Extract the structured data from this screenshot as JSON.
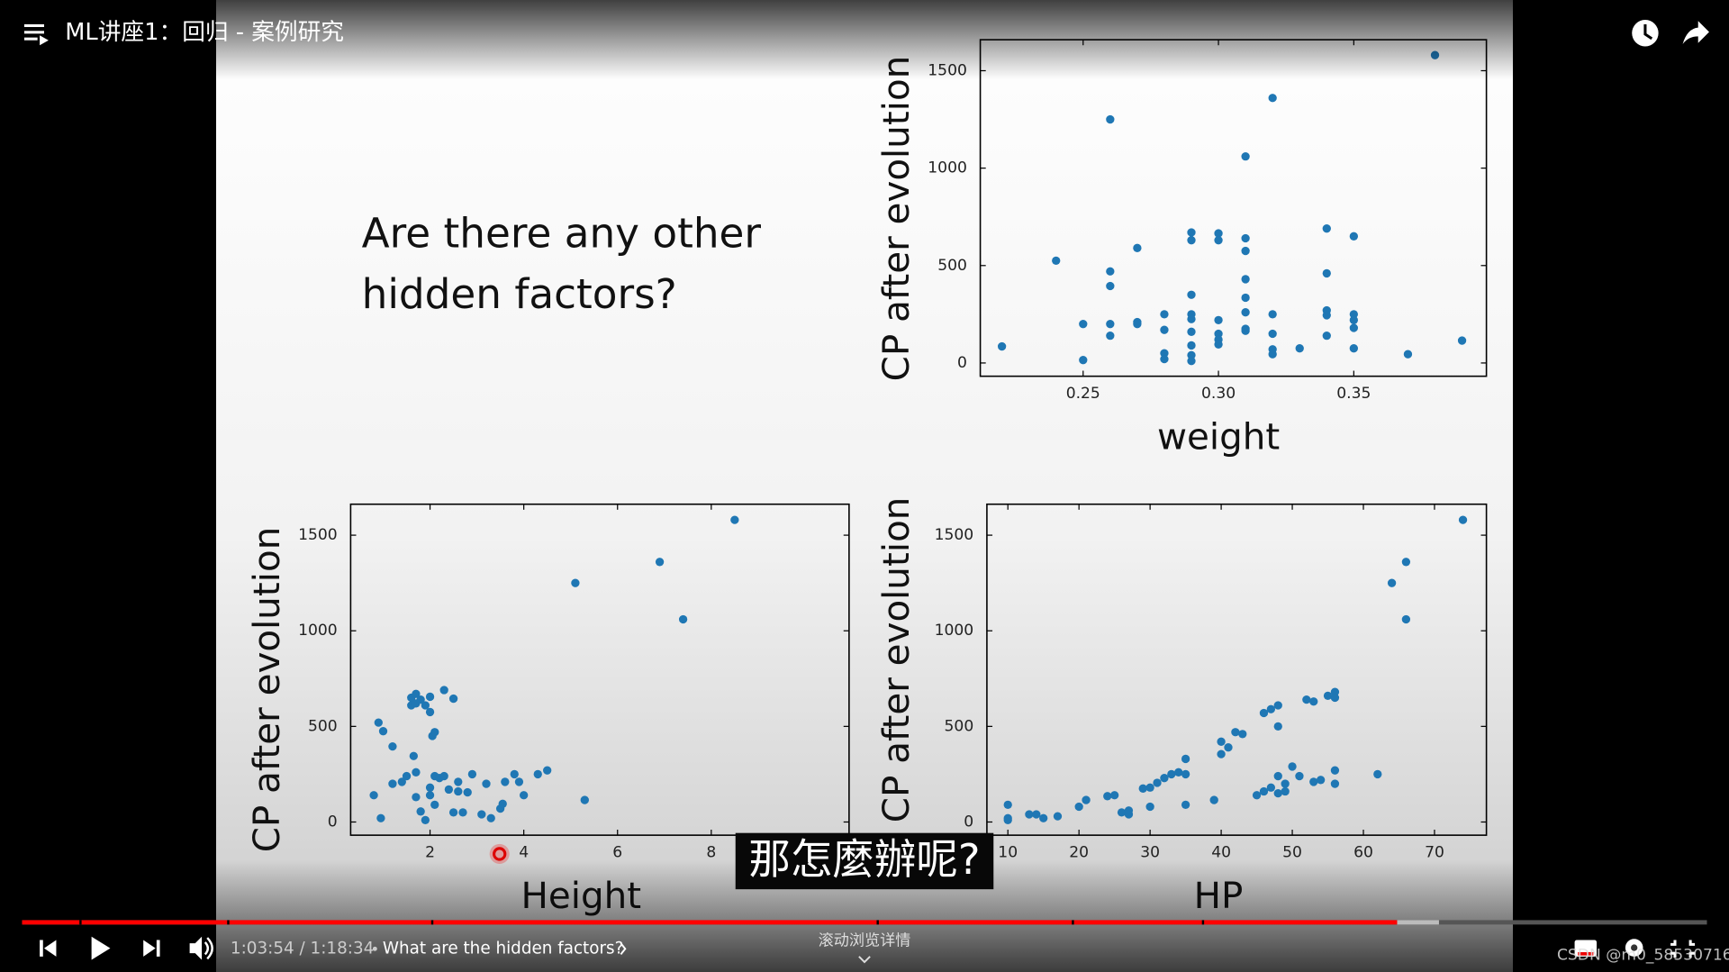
{
  "player": {
    "title": "ML讲座1：回归 - 案例研究",
    "time": "1:03:54 / 1:18:34",
    "chapter": "What are the hidden factors?",
    "caption": "那怎麼辦呢?",
    "scroll_hint": "滚动浏览详情",
    "watermark": "CSDN @m0_58530716"
  },
  "slide": {
    "question_lines": [
      "Are there any other",
      "hidden factors?"
    ]
  },
  "chart_data": [
    {
      "type": "scatter",
      "xlabel": "weight",
      "ylabel": "CP after evolution",
      "color": "#1f77b4",
      "grid": false,
      "xlim": [
        0.212,
        0.399
      ],
      "xticks": [
        0.25,
        {
          "value": 0.3,
          "label": "0.30"
        },
        0.35
      ],
      "ylim": [
        -68,
        1659
      ],
      "yticks": [
        0,
        500,
        1000,
        1500
      ],
      "x": [
        0.22,
        0.24,
        0.25,
        0.25,
        0.26,
        0.26,
        0.26,
        0.26,
        0.26,
        0.27,
        0.27,
        0.27,
        0.28,
        0.28,
        0.28,
        0.28,
        0.29,
        0.29,
        0.29,
        0.29,
        0.29,
        0.29,
        0.29,
        0.29,
        0.29,
        0.3,
        0.3,
        0.3,
        0.3,
        0.3,
        0.3,
        0.31,
        0.31,
        0.31,
        0.31,
        0.31,
        0.31,
        0.31,
        0.31,
        0.32,
        0.32,
        0.32,
        0.32,
        0.32,
        0.33,
        0.34,
        0.34,
        0.34,
        0.34,
        0.34,
        0.35,
        0.35,
        0.35,
        0.35,
        0.35,
        0.37,
        0.38,
        0.39
      ],
      "y": [
        85,
        525,
        200,
        15,
        1250,
        470,
        395,
        200,
        140,
        590,
        210,
        200,
        250,
        170,
        50,
        20,
        670,
        630,
        350,
        250,
        225,
        160,
        90,
        40,
        10,
        665,
        630,
        220,
        150,
        120,
        95,
        1060,
        640,
        575,
        430,
        335,
        260,
        175,
        165,
        1360,
        250,
        150,
        70,
        45,
        75,
        690,
        460,
        270,
        245,
        140,
        650,
        250,
        220,
        180,
        75,
        45,
        1580,
        115
      ]
    },
    {
      "type": "scatter",
      "xlabel": "Height",
      "ylabel": "CP after evolution",
      "color": "#1f77b4",
      "grid": false,
      "xlim": [
        0.306,
        10.94
      ],
      "xticks": [
        2,
        4,
        6,
        8
      ],
      "ylim": [
        -69,
        1662
      ],
      "yticks": [
        0,
        500,
        1000,
        1500
      ],
      "x": [
        0.8,
        0.9,
        0.95,
        1.0,
        1.2,
        1.2,
        1.4,
        1.5,
        1.6,
        1.6,
        1.65,
        1.7,
        1.7,
        1.7,
        1.7,
        1.8,
        1.8,
        1.9,
        1.9,
        2.0,
        2.0,
        2.0,
        2.0,
        2.05,
        2.1,
        2.1,
        2.1,
        2.2,
        2.3,
        2.3,
        2.4,
        2.5,
        2.5,
        2.6,
        2.6,
        2.7,
        2.8,
        2.9,
        3.1,
        3.2,
        3.3,
        3.5,
        3.55,
        3.6,
        3.8,
        3.9,
        4.0,
        4.3,
        4.5,
        5.1,
        5.3,
        6.9,
        7.4,
        8.5
      ],
      "y": [
        140,
        520,
        20,
        475,
        395,
        200,
        210,
        240,
        650,
        610,
        345,
        670,
        620,
        260,
        130,
        640,
        55,
        610,
        10,
        655,
        575,
        180,
        140,
        450,
        470,
        240,
        90,
        230,
        690,
        240,
        170,
        645,
        50,
        210,
        160,
        50,
        155,
        250,
        40,
        200,
        20,
        70,
        95,
        210,
        250,
        210,
        140,
        250,
        270,
        1250,
        115,
        1360,
        1060,
        1580
      ]
    },
    {
      "type": "scatter",
      "xlabel": "HP",
      "ylabel": "CP after evolution",
      "color": "#1f77b4",
      "grid": false,
      "xlim": [
        7.05,
        77.3
      ],
      "xticks": [
        10,
        20,
        30,
        40,
        50,
        60,
        70
      ],
      "ylim": [
        -69,
        1662
      ],
      "yticks": [
        0,
        500,
        1000,
        1500
      ],
      "x": [
        10,
        10,
        10,
        13,
        14,
        15,
        17,
        20,
        21,
        24,
        25,
        26,
        27,
        27,
        29,
        30,
        30,
        31,
        32,
        33,
        34,
        35,
        35,
        35,
        39,
        40,
        40,
        41,
        42,
        43,
        45,
        46,
        46,
        47,
        47,
        48,
        48,
        48,
        48,
        49,
        49,
        50,
        51,
        52,
        53,
        53,
        54,
        55,
        56,
        56,
        56,
        56,
        62,
        64,
        66,
        66,
        74
      ],
      "y": [
        90,
        20,
        10,
        40,
        40,
        20,
        30,
        80,
        115,
        135,
        140,
        50,
        40,
        60,
        175,
        80,
        180,
        205,
        230,
        250,
        260,
        330,
        250,
        90,
        115,
        420,
        355,
        390,
        470,
        460,
        140,
        160,
        570,
        590,
        180,
        610,
        500,
        240,
        150,
        200,
        160,
        290,
        240,
        640,
        210,
        630,
        220,
        660,
        680,
        650,
        270,
        200,
        250,
        1250,
        1360,
        1060,
        1580
      ]
    }
  ]
}
